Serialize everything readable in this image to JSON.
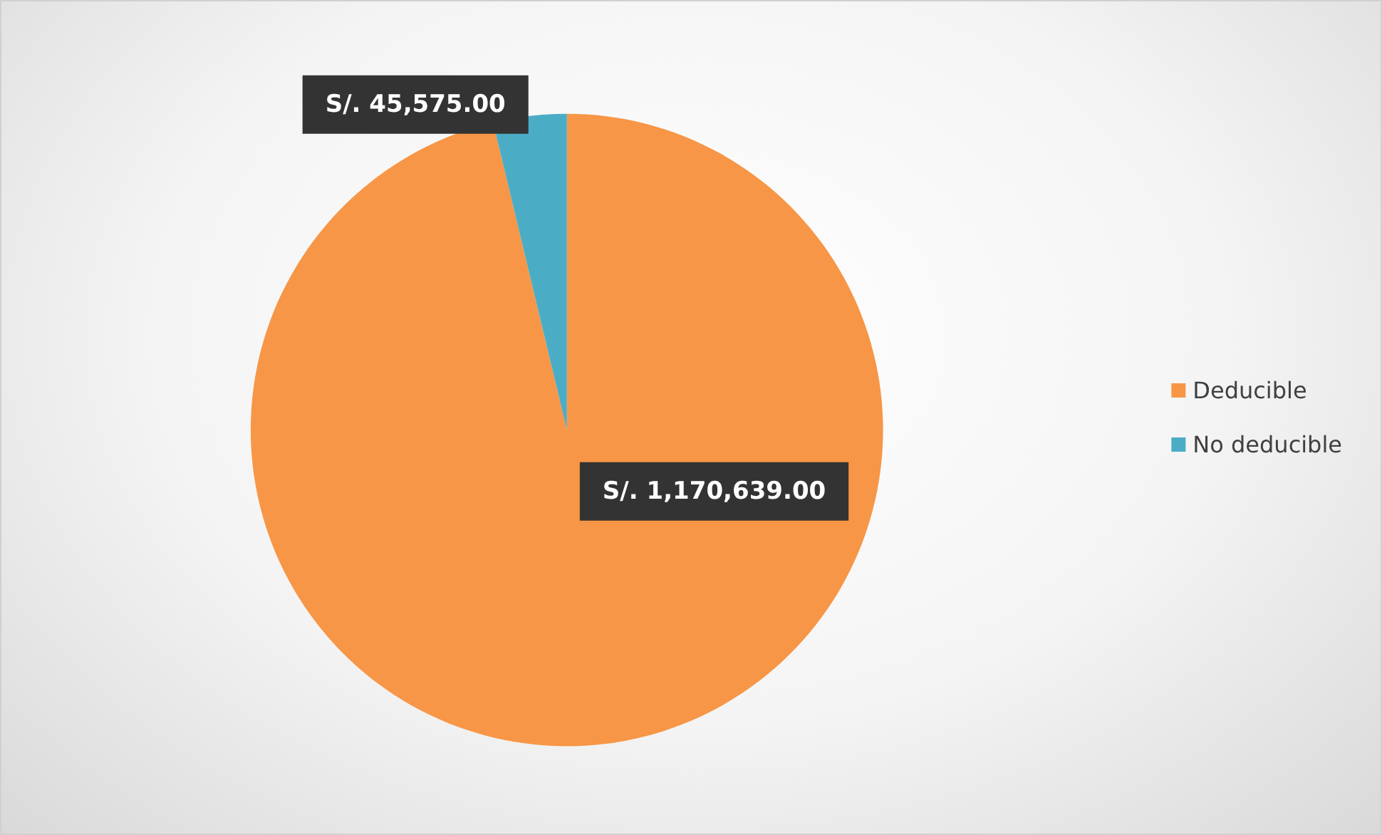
{
  "chart_data": {
    "type": "pie",
    "categories": [
      "Deducible",
      "No deducible"
    ],
    "values": [
      1170639,
      45575
    ],
    "colors": [
      "#f79646",
      "#4bacc6"
    ],
    "value_labels": [
      "S/. 1,170,639.00",
      "S/. 45,575.00"
    ],
    "legend": "right"
  }
}
